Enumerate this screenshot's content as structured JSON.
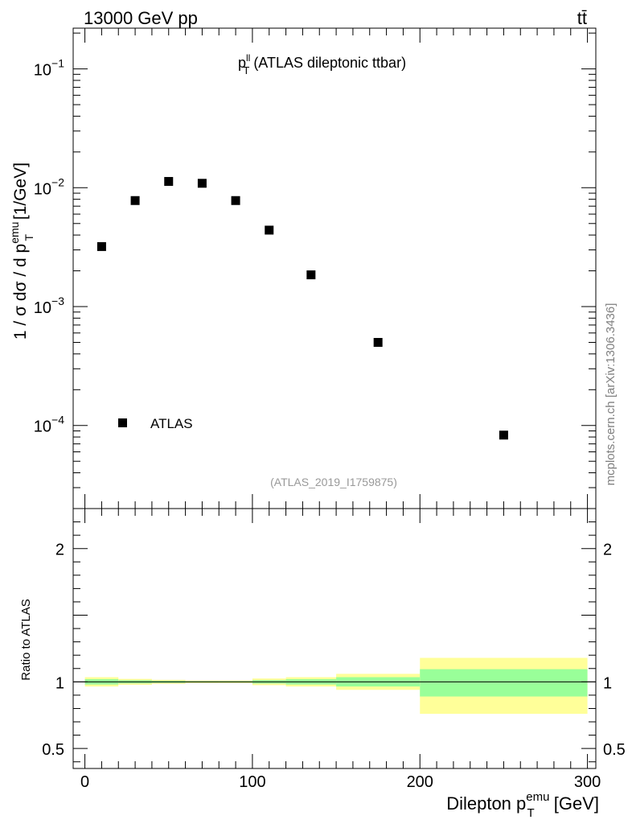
{
  "header": {
    "left": "13000 GeV pp",
    "right": "tt̄"
  },
  "watermark": "mcplots.cern.ch [arXiv:1306.3436]",
  "chart_data": [
    {
      "type": "scatter",
      "title_main": "p",
      "title_sup": "ll",
      "title_sub": "T",
      "title_rest": " (ATLAS dileptonic ttbar)",
      "analysis_id": "(ATLAS_2019_I1759875)",
      "ylabel": "1 / σ dσ / d p",
      "ylabel_sub": "T",
      "ylabel_sup": "emu",
      "ylabel_unit": " [1/GeV]",
      "yscale": "log",
      "ylim": [
        2e-05,
        0.22
      ],
      "xlim": [
        -7,
        305
      ],
      "ytick_labels": [
        {
          "mant": "10",
          "exp": "−1",
          "value": 0.1
        },
        {
          "mant": "10",
          "exp": "−2",
          "value": 0.01
        },
        {
          "mant": "10",
          "exp": "−3",
          "value": 0.001
        },
        {
          "mant": "10",
          "exp": "−4",
          "value": 0.0001
        }
      ],
      "legend": [
        {
          "name": "ATLAS",
          "marker": "square",
          "placement": "bottom-left"
        }
      ],
      "series": [
        {
          "name": "ATLAS",
          "color": "#000000",
          "points": [
            {
              "x": 10,
              "y": 0.0032
            },
            {
              "x": 30,
              "y": 0.0078
            },
            {
              "x": 50,
              "y": 0.0113
            },
            {
              "x": 70,
              "y": 0.0109
            },
            {
              "x": 90,
              "y": 0.0078
            },
            {
              "x": 110,
              "y": 0.0044
            },
            {
              "x": 135,
              "y": 0.00185
            },
            {
              "x": 175,
              "y": 0.0005
            },
            {
              "x": 250,
              "y": 8.3e-05
            }
          ]
        }
      ]
    },
    {
      "type": "area",
      "ylabel": "Ratio to ATLAS",
      "xlabel_main": "Dilepton p",
      "xlabel_sub": "T",
      "xlabel_sup": "emu",
      "xlabel_unit": " [GeV]",
      "xlim": [
        -7,
        305
      ],
      "ylim": [
        0.35,
        2.3
      ],
      "x_ticks": [
        "0",
        "100",
        "200",
        "300"
      ],
      "y_ticks": [
        "0.5",
        "1",
        "2"
      ],
      "reference_line": 1,
      "colors": {
        "outer": "#ffff99",
        "inner": "#99ff99"
      },
      "bands": [
        {
          "x0": 0,
          "x1": 20,
          "outer": [
            0.965,
            1.035
          ],
          "inner": [
            0.98,
            1.02
          ]
        },
        {
          "x0": 20,
          "x1": 40,
          "outer": [
            0.978,
            1.022
          ],
          "inner": [
            0.988,
            1.012
          ]
        },
        {
          "x0": 40,
          "x1": 60,
          "outer": [
            0.985,
            1.015
          ],
          "inner": [
            0.992,
            1.008
          ]
        },
        {
          "x0": 60,
          "x1": 80,
          "outer": [
            0.99,
            1.01
          ],
          "inner": [
            0.995,
            1.005
          ]
        },
        {
          "x0": 80,
          "x1": 100,
          "outer": [
            0.99,
            1.01
          ],
          "inner": [
            0.995,
            1.005
          ]
        },
        {
          "x0": 100,
          "x1": 120,
          "outer": [
            0.975,
            1.025
          ],
          "inner": [
            0.987,
            1.013
          ]
        },
        {
          "x0": 120,
          "x1": 150,
          "outer": [
            0.965,
            1.035
          ],
          "inner": [
            0.98,
            1.02
          ]
        },
        {
          "x0": 150,
          "x1": 200,
          "outer": [
            0.94,
            1.06
          ],
          "inner": [
            0.965,
            1.035
          ]
        },
        {
          "x0": 200,
          "x1": 300,
          "outer": [
            0.76,
            1.18
          ],
          "inner": [
            0.89,
            1.095
          ]
        }
      ]
    }
  ]
}
